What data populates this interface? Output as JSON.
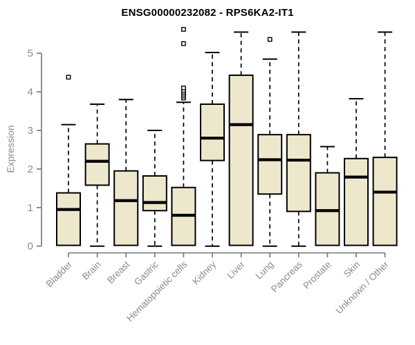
{
  "chart_data": {
    "type": "boxplot",
    "title": "ENSG00000232082 - RPS6KA2-IT1",
    "ylabel": "Expression",
    "xlabel": "",
    "ylim": [
      0,
      5.66
    ],
    "yticks": [
      0,
      1,
      2,
      3,
      4,
      5
    ],
    "grid": false,
    "legend": false,
    "box_fill": "#EDE7CC",
    "box_stroke": "#000000",
    "axis_color": "#737373",
    "text_color": "#8a8a8a",
    "title_color": "#000000",
    "categories": [
      "Bladder",
      "Brain",
      "Breast",
      "Gastric",
      "Hematopoietic cells",
      "Kidney",
      "Liver",
      "Lung",
      "Pancreas",
      "Prostate",
      "Skin",
      "Unknown / Other"
    ],
    "series": [
      {
        "category": "Bladder",
        "whisker_low": 0,
        "q1": 0.02,
        "median": 0.95,
        "q3": 1.38,
        "whisker_high": 3.15,
        "outliers": [
          4.38
        ]
      },
      {
        "category": "Brain",
        "whisker_low": 0,
        "q1": 1.58,
        "median": 2.2,
        "q3": 2.65,
        "whisker_high": 3.68,
        "outliers": []
      },
      {
        "category": "Breast",
        "whisker_low": 0,
        "q1": 0.02,
        "median": 1.18,
        "q3": 1.95,
        "whisker_high": 3.8,
        "outliers": []
      },
      {
        "category": "Gastric",
        "whisker_low": 0,
        "q1": 0.92,
        "median": 1.13,
        "q3": 1.82,
        "whisker_high": 3.0,
        "outliers": []
      },
      {
        "category": "Hematopoietic cells",
        "whisker_low": 0,
        "q1": 0.02,
        "median": 0.8,
        "q3": 1.52,
        "whisker_high": 3.73,
        "outliers": [
          3.84,
          3.89,
          3.94,
          3.99,
          4.04,
          4.1,
          5.25,
          5.62
        ]
      },
      {
        "category": "Kidney",
        "whisker_low": 0,
        "q1": 2.22,
        "median": 2.8,
        "q3": 3.68,
        "whisker_high": 5.02,
        "outliers": []
      },
      {
        "category": "Liver",
        "whisker_low": 0,
        "q1": 0.02,
        "median": 3.15,
        "q3": 4.43,
        "whisker_high": 5.55,
        "outliers": []
      },
      {
        "category": "Lung",
        "whisker_low": 0,
        "q1": 1.35,
        "median": 2.24,
        "q3": 2.89,
        "whisker_high": 4.85,
        "outliers": [
          5.36
        ]
      },
      {
        "category": "Pancreas",
        "whisker_low": 0,
        "q1": 0.9,
        "median": 2.23,
        "q3": 2.89,
        "whisker_high": 5.55,
        "outliers": []
      },
      {
        "category": "Prostate",
        "whisker_low": 0,
        "q1": 0.02,
        "median": 0.92,
        "q3": 1.9,
        "whisker_high": 2.58,
        "outliers": []
      },
      {
        "category": "Skin",
        "whisker_low": 0,
        "q1": 0.02,
        "median": 1.79,
        "q3": 2.27,
        "whisker_high": 3.82,
        "outliers": []
      },
      {
        "category": "Unknown / Other",
        "whisker_low": 0,
        "q1": 0.02,
        "median": 1.4,
        "q3": 2.3,
        "whisker_high": 5.55,
        "outliers": []
      }
    ]
  }
}
